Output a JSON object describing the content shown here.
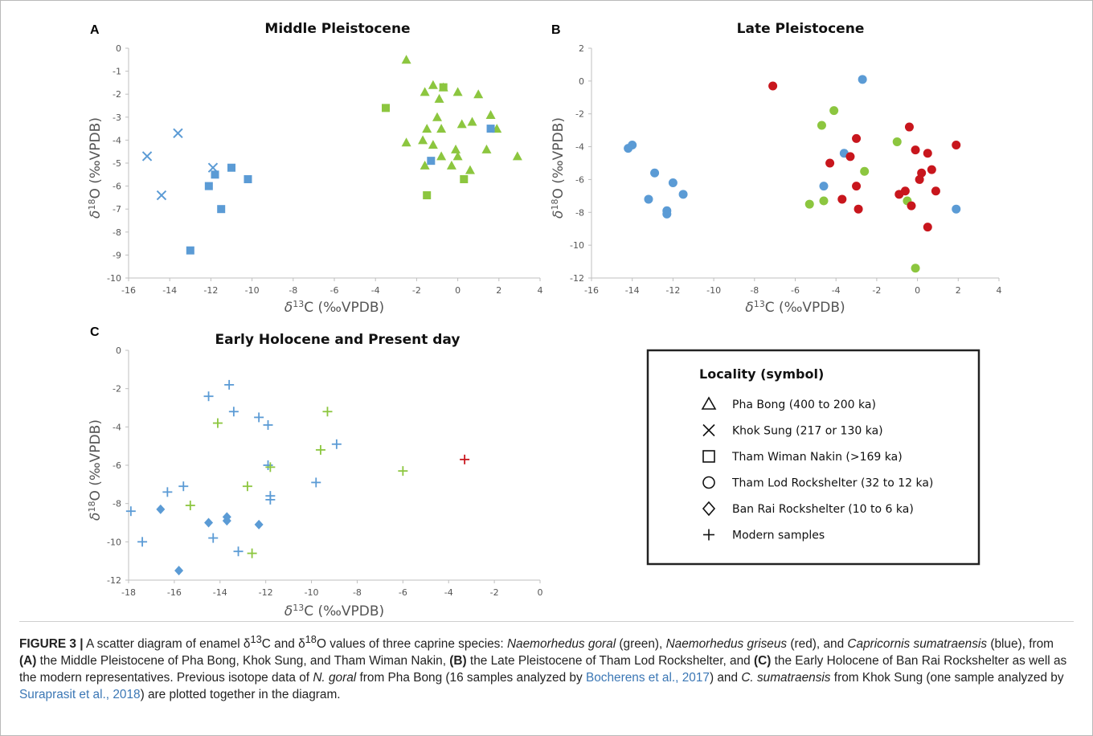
{
  "colors": {
    "green": "#8cc63f",
    "red": "#c8161d",
    "blue": "#5b9bd5",
    "axis": "#bfbfbf",
    "text": "#555555"
  },
  "panels": {
    "A": {
      "letter": "A",
      "title": "Middle Pleistocene"
    },
    "B": {
      "letter": "B",
      "title": "Late Pleistocene"
    },
    "C": {
      "letter": "C",
      "title": "Early Holocene and Present day"
    }
  },
  "axis": {
    "x_label_prefix": "δ",
    "x_label_sup": "13",
    "x_label_suffix": "C (‰VPDB)",
    "y_label_prefix": "δ",
    "y_label_sup": "18",
    "y_label_suffix": "O (‰VPDB)"
  },
  "legend": {
    "title": "Locality (symbol)",
    "items": [
      {
        "symbol": "triangle",
        "label": "Pha Bong (400 to 200 ka)"
      },
      {
        "symbol": "cross",
        "label": "Khok Sung (217 or 130 ka)"
      },
      {
        "symbol": "square",
        "label": "Tham Wiman Nakin (>169 ka)"
      },
      {
        "symbol": "circle",
        "label": "Tham Lod Rockshelter (32 to 12 ka)"
      },
      {
        "symbol": "diamond",
        "label": "Ban Rai Rockshelter (10 to 6 ka)"
      },
      {
        "symbol": "plus",
        "label": "Modern samples"
      }
    ]
  },
  "caption": {
    "fig": "FIGURE 3 |",
    "t1": " A scatter diagram of enamel δ",
    "s1": "13",
    "t2": "C and δ",
    "s2": "18",
    "t3": "O values of three caprine species: ",
    "sp1": "Naemorhedus goral",
    "t4": " (green), ",
    "sp2": "Naemorhedus griseus",
    "t5": " (red), and ",
    "sp3": "Capricornis sumatraensis",
    "t6": " (blue), from ",
    "ba": "(A)",
    "t7": " the Middle Pleistocene of Pha Bong, Khok Sung, and Tham Wiman Nakin, ",
    "bb": "(B)",
    "t8": " the Late Pleistocene of Tham Lod Rockshelter, and ",
    "bc": "(C)",
    "t9": " the Early Holocene of Ban Rai Rockshelter as well as the modern representatives. Previous isotope data of ",
    "sp4": "N. goral",
    "t10": " from Pha Bong (16 samples analyzed by ",
    "ref1": "Bocherens et al., 2017",
    "t11": ") and ",
    "sp5": "C. sumatraensis",
    "t12": " from Khok Sung (one sample analyzed by ",
    "ref2": "Suraprasit et al., 2018",
    "t13": ") are plotted together in the diagram."
  },
  "chart_data": [
    {
      "panel": "A",
      "type": "scatter",
      "title": "Middle Pleistocene",
      "xlabel": "δ13C (‰VPDB)",
      "ylabel": "δ18O (‰VPDB)",
      "xlim": [
        -16,
        4
      ],
      "ylim": [
        -10,
        0
      ],
      "xticks": [
        -16,
        -14,
        -12,
        -10,
        -8,
        -6,
        -4,
        -2,
        0,
        2,
        4
      ],
      "yticks": [
        0,
        -1,
        -2,
        -3,
        -4,
        -5,
        -6,
        -7,
        -8,
        -9,
        -10
      ],
      "series": [
        {
          "species": "green",
          "marker": "triangle",
          "points": [
            [
              -2.5,
              -0.5
            ],
            [
              -1.2,
              -1.6
            ],
            [
              -1.6,
              -1.9
            ],
            [
              -0.7,
              -1.7
            ],
            [
              -0.9,
              -2.2
            ],
            [
              0.0,
              -1.9
            ],
            [
              1.0,
              -2.0
            ],
            [
              -1.0,
              -3.0
            ],
            [
              -1.5,
              -3.5
            ],
            [
              -0.8,
              -3.5
            ],
            [
              0.2,
              -3.3
            ],
            [
              0.7,
              -3.2
            ],
            [
              1.6,
              -2.9
            ],
            [
              1.9,
              -3.5
            ],
            [
              -2.5,
              -4.1
            ],
            [
              -1.7,
              -4.0
            ],
            [
              -1.2,
              -4.2
            ],
            [
              -0.1,
              -4.4
            ],
            [
              0.0,
              -4.7
            ],
            [
              -0.8,
              -4.7
            ],
            [
              1.4,
              -4.4
            ],
            [
              -1.6,
              -5.1
            ],
            [
              -0.3,
              -5.1
            ],
            [
              0.6,
              -5.3
            ],
            [
              2.9,
              -4.7
            ]
          ]
        },
        {
          "species": "blue",
          "marker": "cross",
          "points": [
            [
              -15.1,
              -4.7
            ],
            [
              -13.6,
              -3.7
            ],
            [
              -14.4,
              -6.4
            ],
            [
              -11.9,
              -5.2
            ]
          ]
        },
        {
          "species": "blue",
          "marker": "square",
          "points": [
            [
              -11.0,
              -5.2
            ],
            [
              -11.8,
              -5.5
            ],
            [
              -12.1,
              -6.0
            ],
            [
              -10.2,
              -5.7
            ],
            [
              -11.5,
              -7.0
            ],
            [
              -13.0,
              -8.8
            ]
          ]
        },
        {
          "species": "green",
          "marker": "square",
          "points": [
            [
              -3.5,
              -2.6
            ],
            [
              -0.7,
              -1.7
            ],
            [
              0.3,
              -5.7
            ],
            [
              -1.5,
              -6.4
            ]
          ]
        },
        {
          "species": "blue",
          "marker": "square_extra",
          "points": [
            [
              1.6,
              -3.5
            ],
            [
              -1.3,
              -4.9
            ]
          ]
        }
      ]
    },
    {
      "panel": "B",
      "type": "scatter",
      "title": "Late Pleistocene",
      "xlabel": "δ13C (‰VPDB)",
      "ylabel": "δ18O (‰VPDB)",
      "xlim": [
        -16,
        4
      ],
      "ylim": [
        -12,
        2
      ],
      "xticks": [
        -16,
        -14,
        -12,
        -10,
        -8,
        -6,
        -4,
        -2,
        0,
        2,
        4
      ],
      "yticks": [
        2,
        0,
        -2,
        -4,
        -6,
        -8,
        -10,
        -12
      ],
      "series": [
        {
          "species": "blue",
          "marker": "circle",
          "points": [
            [
              -14.2,
              -4.1
            ],
            [
              -14.0,
              -3.9
            ],
            [
              -12.9,
              -5.6
            ],
            [
              -12.0,
              -6.2
            ],
            [
              -11.5,
              -6.9
            ],
            [
              -13.2,
              -7.2
            ],
            [
              -12.3,
              -7.9
            ],
            [
              -12.3,
              -8.1
            ],
            [
              -2.7,
              0.1
            ],
            [
              -3.6,
              -4.4
            ],
            [
              -4.6,
              -6.4
            ],
            [
              1.9,
              -7.8
            ]
          ]
        },
        {
          "species": "green",
          "marker": "circle",
          "points": [
            [
              -4.1,
              -1.8
            ],
            [
              -4.7,
              -2.7
            ],
            [
              -1.0,
              -3.7
            ],
            [
              -2.6,
              -5.5
            ],
            [
              -5.3,
              -7.5
            ],
            [
              -4.6,
              -7.3
            ],
            [
              -0.5,
              -7.3
            ],
            [
              -0.1,
              -11.4
            ]
          ]
        },
        {
          "species": "red",
          "marker": "circle",
          "points": [
            [
              -7.1,
              -0.3
            ],
            [
              -0.4,
              -2.8
            ],
            [
              -3.0,
              -3.5
            ],
            [
              -0.1,
              -4.2
            ],
            [
              0.5,
              -4.4
            ],
            [
              1.9,
              -3.9
            ],
            [
              -3.3,
              -4.6
            ],
            [
              -4.3,
              -5.0
            ],
            [
              0.2,
              -5.6
            ],
            [
              0.7,
              -5.4
            ],
            [
              0.1,
              -6.0
            ],
            [
              -3.0,
              -6.4
            ],
            [
              -3.7,
              -7.2
            ],
            [
              -0.6,
              -6.7
            ],
            [
              -0.9,
              -6.9
            ],
            [
              0.9,
              -6.7
            ],
            [
              -2.9,
              -7.8
            ],
            [
              -0.3,
              -7.6
            ],
            [
              0.5,
              -8.9
            ]
          ]
        }
      ]
    },
    {
      "panel": "C",
      "type": "scatter",
      "title": "Early Holocene and Present day",
      "xlabel": "δ13C (‰VPDB)",
      "ylabel": "δ18O (‰VPDB)",
      "xlim": [
        -18,
        0
      ],
      "ylim": [
        -12,
        0
      ],
      "xticks": [
        -18,
        -16,
        -14,
        -12,
        -10,
        -8,
        -6,
        -4,
        -2,
        0
      ],
      "yticks": [
        0,
        -2,
        -4,
        -6,
        -8,
        -10,
        -12
      ],
      "series": [
        {
          "species": "blue",
          "marker": "plus",
          "points": [
            [
              -13.6,
              -1.8
            ],
            [
              -14.5,
              -2.4
            ],
            [
              -13.4,
              -3.2
            ],
            [
              -12.3,
              -3.5
            ],
            [
              -11.9,
              -3.9
            ],
            [
              -8.9,
              -4.9
            ],
            [
              -11.9,
              -6.0
            ],
            [
              -15.6,
              -7.1
            ],
            [
              -16.3,
              -7.4
            ],
            [
              -9.8,
              -6.9
            ],
            [
              -11.8,
              -7.6
            ],
            [
              -11.8,
              -7.8
            ],
            [
              -17.9,
              -8.4
            ],
            [
              -17.4,
              -10.0
            ],
            [
              -14.3,
              -9.8
            ],
            [
              -13.2,
              -10.5
            ]
          ]
        },
        {
          "species": "green",
          "marker": "plus",
          "points": [
            [
              -14.1,
              -3.8
            ],
            [
              -9.3,
              -3.2
            ],
            [
              -9.6,
              -5.2
            ],
            [
              -11.8,
              -6.1
            ],
            [
              -6.0,
              -6.3
            ],
            [
              -12.8,
              -7.1
            ],
            [
              -15.3,
              -8.1
            ],
            [
              -12.6,
              -10.6
            ]
          ]
        },
        {
          "species": "red",
          "marker": "plus",
          "points": [
            [
              -3.3,
              -5.7
            ]
          ]
        },
        {
          "species": "blue",
          "marker": "diamond",
          "points": [
            [
              -16.6,
              -8.3
            ],
            [
              -13.7,
              -8.7
            ],
            [
              -13.7,
              -8.9
            ],
            [
              -14.5,
              -9.0
            ],
            [
              -12.3,
              -9.1
            ],
            [
              -15.8,
              -11.5
            ]
          ]
        }
      ]
    }
  ]
}
